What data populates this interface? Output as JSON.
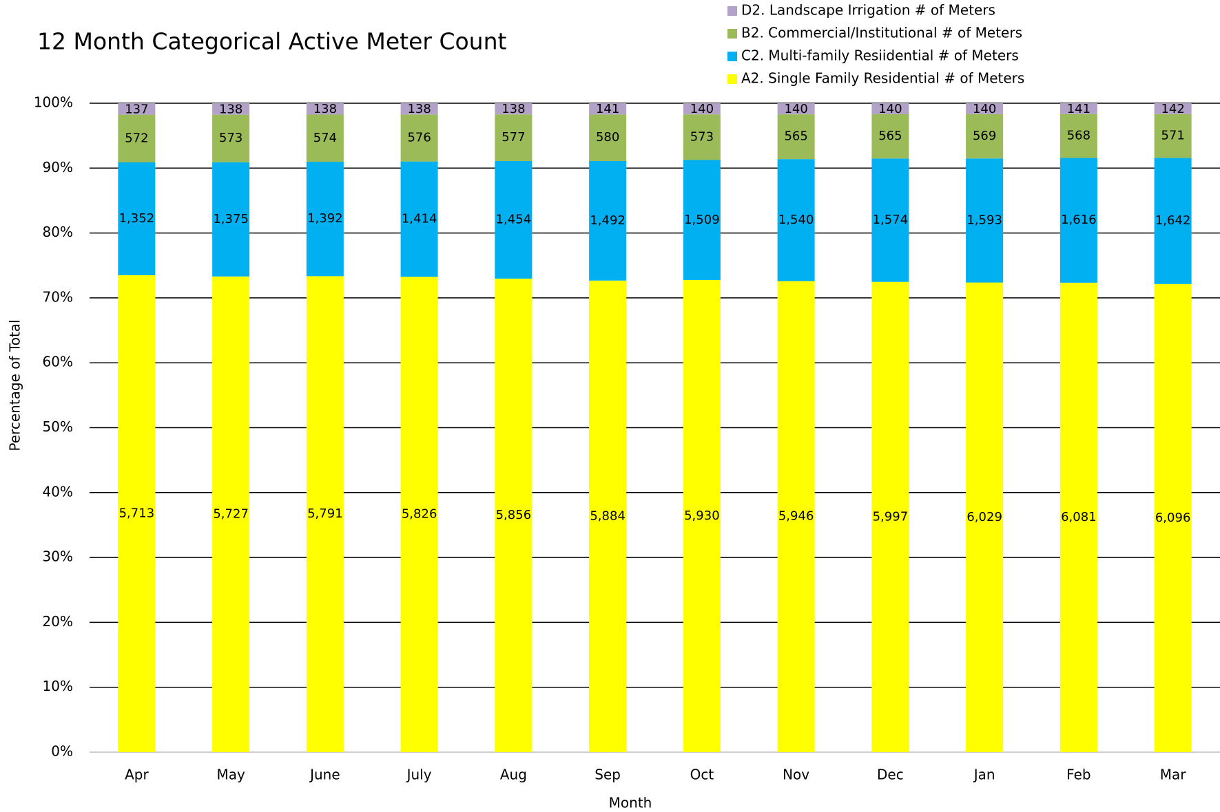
{
  "chart_data": {
    "type": "stacked_percent_bar",
    "title": "12 Month Categorical Active Meter Count",
    "x_label": "Month",
    "y_label": "Percentage of Total",
    "categories": [
      "Apr",
      "May",
      "June",
      "July",
      "Aug",
      "Sep",
      "Oct",
      "Nov",
      "Dec",
      "Jan",
      "Feb",
      "Mar"
    ],
    "series": [
      {
        "name": "A2. Single Family Residential # of Meters",
        "color": "#ffff00",
        "values": [
          5713,
          5727,
          5791,
          5826,
          5856,
          5884,
          5930,
          5946,
          5997,
          6029,
          6081,
          6096
        ],
        "value_labels": [
          "5,713",
          "5,727",
          "5,791",
          "5,826",
          "5,856",
          "5,884",
          "5,930",
          "5,946",
          "5,997",
          "6,029",
          "6,081",
          "6,096"
        ]
      },
      {
        "name": "C2. Multi-family Resiidential # of Meters",
        "color": "#00b0f0",
        "values": [
          1352,
          1375,
          1392,
          1414,
          1454,
          1492,
          1509,
          1540,
          1574,
          1593,
          1616,
          1642
        ],
        "value_labels": [
          "1,352",
          "1,375",
          "1,392",
          "1,414",
          "1,454",
          "1,492",
          "1,509",
          "1,540",
          "1,574",
          "1,593",
          "1,616",
          "1,642"
        ]
      },
      {
        "name": "B2. Commercial/Institutional # of Meters",
        "color": "#9bbb59",
        "values": [
          572,
          573,
          574,
          576,
          577,
          580,
          573,
          565,
          565,
          569,
          568,
          571
        ]
      },
      {
        "name": "D2. Landscape Irrigation # of Meters",
        "color": "#b3a2c7",
        "values": [
          137,
          138,
          138,
          138,
          138,
          141,
          140,
          140,
          140,
          140,
          141,
          142
        ]
      }
    ],
    "ylim": [
      0,
      100
    ],
    "yticks": [
      {
        "value": 0,
        "label": "0%"
      },
      {
        "value": 10,
        "label": "10%"
      },
      {
        "value": 20,
        "label": "20%"
      },
      {
        "value": 30,
        "label": "30%"
      },
      {
        "value": 40,
        "label": "40%"
      },
      {
        "value": 50,
        "label": "50%"
      },
      {
        "value": 60,
        "label": "60%"
      },
      {
        "value": 70,
        "label": "70%"
      },
      {
        "value": 80,
        "label": "80%"
      },
      {
        "value": 90,
        "label": "90%"
      },
      {
        "value": 100,
        "label": "100%"
      }
    ],
    "grid": true,
    "legend": "top-right"
  }
}
